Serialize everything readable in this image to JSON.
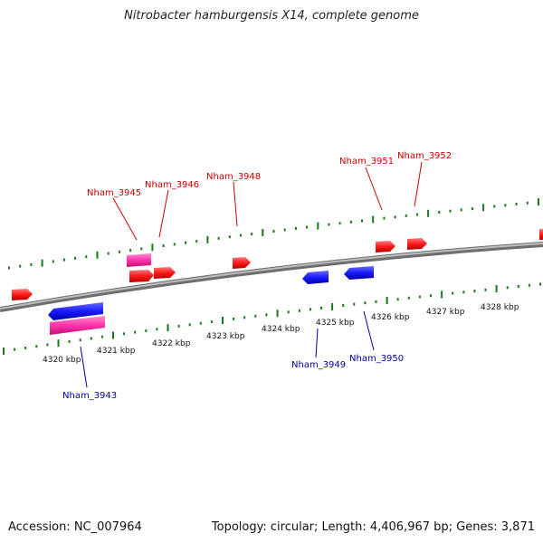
{
  "title": "Nitrobacter hamburgensis X14, complete genome",
  "footer": {
    "accession": "Accession: NC_007964",
    "summary": "Topology: circular; Length: 4,406,967 bp; Genes: 3,871"
  },
  "colors": {
    "backbone": "#8c8c8c",
    "tick": "#1a7a1a",
    "forward_gene": "#ff1a1a",
    "reverse_gene": "#1a1aff",
    "rna_gene": "#ff33aa",
    "forward_label": "#cc0000",
    "reverse_label": "#000099"
  },
  "scale_labels": [
    "4320 kbp",
    "4321 kbp",
    "4322 kbp",
    "4323 kbp",
    "4324 kbp",
    "4325 kbp",
    "4326 kbp",
    "4327 kbp",
    "4328 kbp"
  ],
  "gene_labels": {
    "forward": [
      "Nham_3945",
      "Nham_3946",
      "Nham_3948",
      "Nham_3951",
      "Nham_3952"
    ],
    "reverse": [
      "Nham_3943",
      "Nham_3949",
      "Nham_3950"
    ]
  }
}
